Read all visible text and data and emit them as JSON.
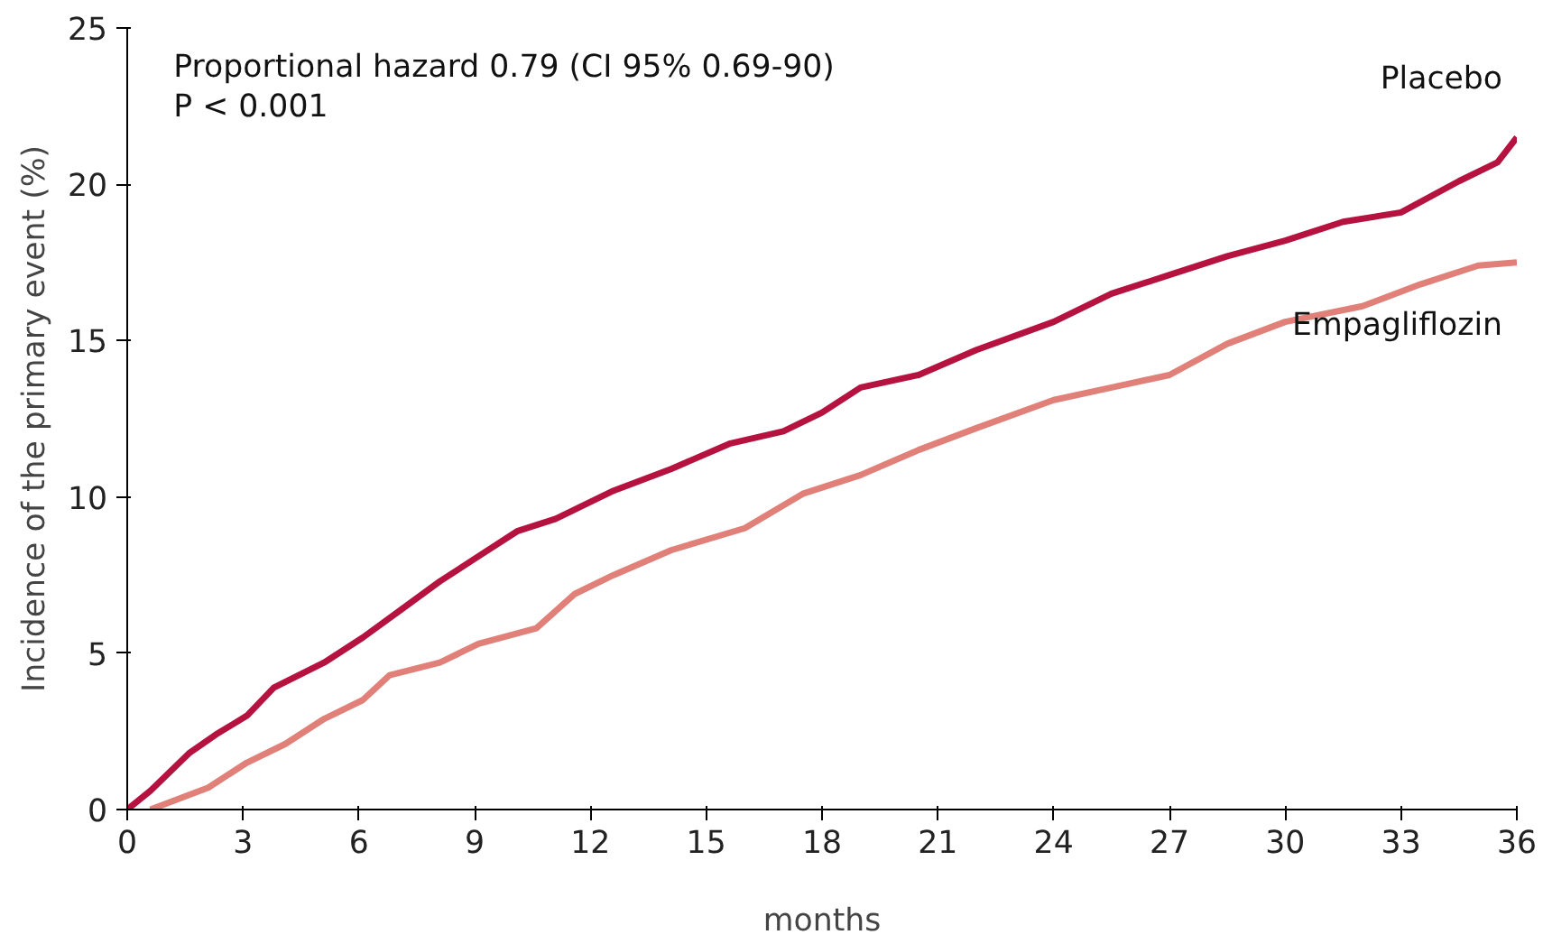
{
  "chart_data": {
    "type": "line",
    "xlabel": "months",
    "ylabel": "Incidence of the primary event (%)",
    "annotations": [
      "Proportional hazard 0.79 (CI 95% 0.69-90)",
      "P < 0.001"
    ],
    "xlim": [
      0,
      36
    ],
    "ylim": [
      0,
      25
    ],
    "xticks": [
      0,
      3,
      6,
      9,
      12,
      15,
      18,
      21,
      24,
      27,
      30,
      33,
      36
    ],
    "yticks": [
      0,
      5,
      10,
      15,
      20,
      25
    ],
    "grid": false,
    "legend": false,
    "marker": "none",
    "line_style": "solid",
    "series": [
      {
        "name": "Placebo",
        "color": "#b5123f",
        "x": [
          0,
          0.6,
          1.1,
          1.6,
          2.3,
          3.1,
          3.8,
          5.1,
          6.1,
          7.1,
          8.1,
          9.1,
          10.1,
          11.1,
          12.6,
          14.1,
          15.6,
          17.0,
          18.0,
          19.0,
          20.5,
          22.0,
          24.0,
          25.5,
          27.0,
          28.5,
          30.0,
          31.5,
          33.0,
          34.5,
          35.5,
          36
        ],
        "values": [
          0,
          0.6,
          1.2,
          1.8,
          2.4,
          3.0,
          3.9,
          4.7,
          5.5,
          6.4,
          7.3,
          8.1,
          8.9,
          9.3,
          10.2,
          10.9,
          11.7,
          12.1,
          12.7,
          13.5,
          13.9,
          14.7,
          15.6,
          16.5,
          17.1,
          17.7,
          18.2,
          18.8,
          19.1,
          20.1,
          20.7,
          21.5
        ]
      },
      {
        "name": "Empagliflozin",
        "color": "#e08078",
        "x": [
          0.6,
          2.1,
          3.1,
          4.1,
          5.1,
          6.1,
          6.8,
          8.1,
          9.1,
          10.6,
          11.6,
          12.6,
          14.1,
          16.0,
          17.5,
          19.0,
          20.5,
          22.0,
          24.0,
          25.5,
          27.0,
          28.5,
          30.0,
          32.0,
          33.5,
          35.0,
          36.0
        ],
        "values": [
          0,
          0.7,
          1.5,
          2.1,
          2.9,
          3.5,
          4.3,
          4.7,
          5.3,
          5.8,
          6.9,
          7.5,
          8.3,
          9.0,
          10.1,
          10.7,
          11.5,
          12.2,
          13.1,
          13.5,
          13.9,
          14.9,
          15.6,
          16.1,
          16.8,
          17.4,
          17.5
        ]
      }
    ]
  }
}
